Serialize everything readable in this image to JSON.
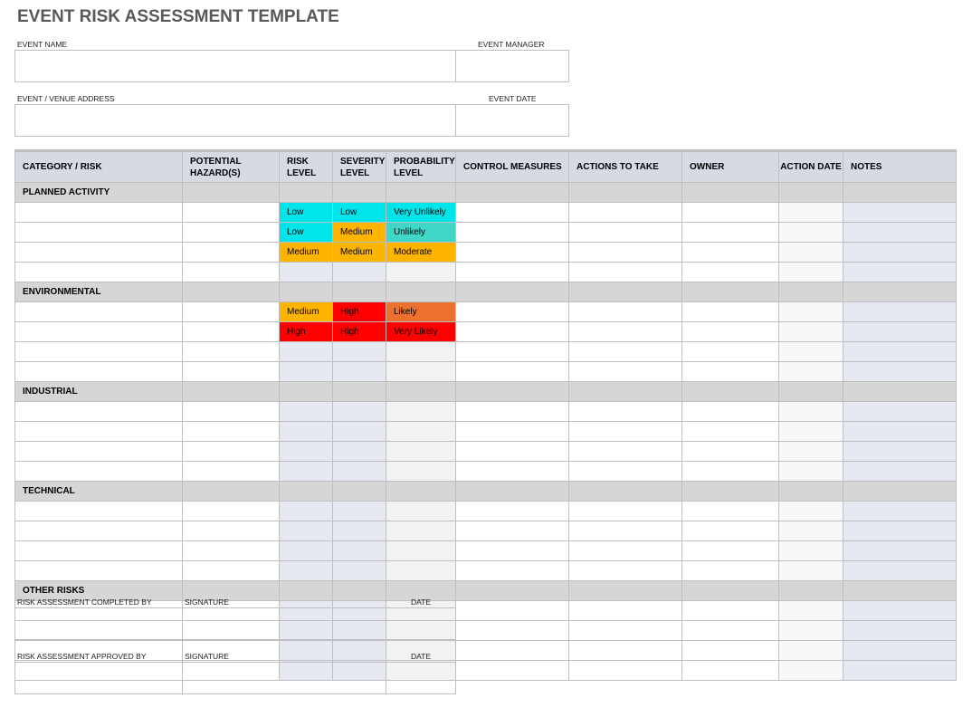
{
  "title": "EVENT RISK ASSESSMENT TEMPLATE",
  "form": {
    "event_name": "EVENT NAME",
    "event_manager": "EVENT MANAGER",
    "address": "EVENT / VENUE ADDRESS",
    "event_date": "EVENT DATE"
  },
  "table": {
    "headers": [
      "CATEGORY / RISK",
      "POTENTIAL HAZARD(S)",
      "RISK LEVEL",
      "SEVERITY LEVEL",
      "PROBABILITY LEVEL",
      "CONTROL MEASURES",
      "ACTIONS TO TAKE",
      "OWNER",
      "ACTION DATE",
      "NOTES"
    ],
    "sections": [
      {
        "name": "PLANNED ACTIVITY",
        "rows": [
          [
            "Low",
            "Low",
            "Very Unlikely"
          ],
          [
            "Low",
            "Medium",
            "Unlikely"
          ],
          [
            "Medium",
            "Medium",
            "Moderate"
          ]
        ]
      },
      {
        "name": "ENVIRONMENTAL",
        "rows": [
          [
            "Medium",
            "High",
            "Likely"
          ],
          [
            "High",
            "High",
            "Very Likely"
          ],
          [
            "",
            "",
            ""
          ]
        ]
      },
      {
        "name": "INDUSTRIAL",
        "rows": [
          [
            "",
            "",
            ""
          ],
          [
            "",
            "",
            ""
          ],
          [
            "",
            "",
            ""
          ]
        ]
      },
      {
        "name": "TECHNICAL",
        "rows": [
          [
            "",
            "",
            ""
          ],
          [
            "",
            "",
            ""
          ],
          [
            "",
            "",
            ""
          ]
        ]
      },
      {
        "name": "OTHER RISKS",
        "rows": [
          [
            "",
            "",
            ""
          ],
          [
            "",
            "",
            ""
          ],
          [
            "",
            "",
            ""
          ]
        ]
      }
    ]
  },
  "level_colors": {
    "Low": "#00e5ea",
    "Medium": "#ffb400",
    "High": "#ff0000",
    "Very Unlikely": "#00e5ea",
    "Unlikely": "#40d6c8",
    "Moderate": "#ffb400",
    "Likely": "#ec712e",
    "Very Likely": "#ff0000"
  },
  "signoff": {
    "completed_by": "RISK ASSESSMENT COMPLETED BY",
    "approved_by": "RISK ASSESSMENT APPROVED BY",
    "signature": "SIGNATURE",
    "date": "DATE"
  }
}
